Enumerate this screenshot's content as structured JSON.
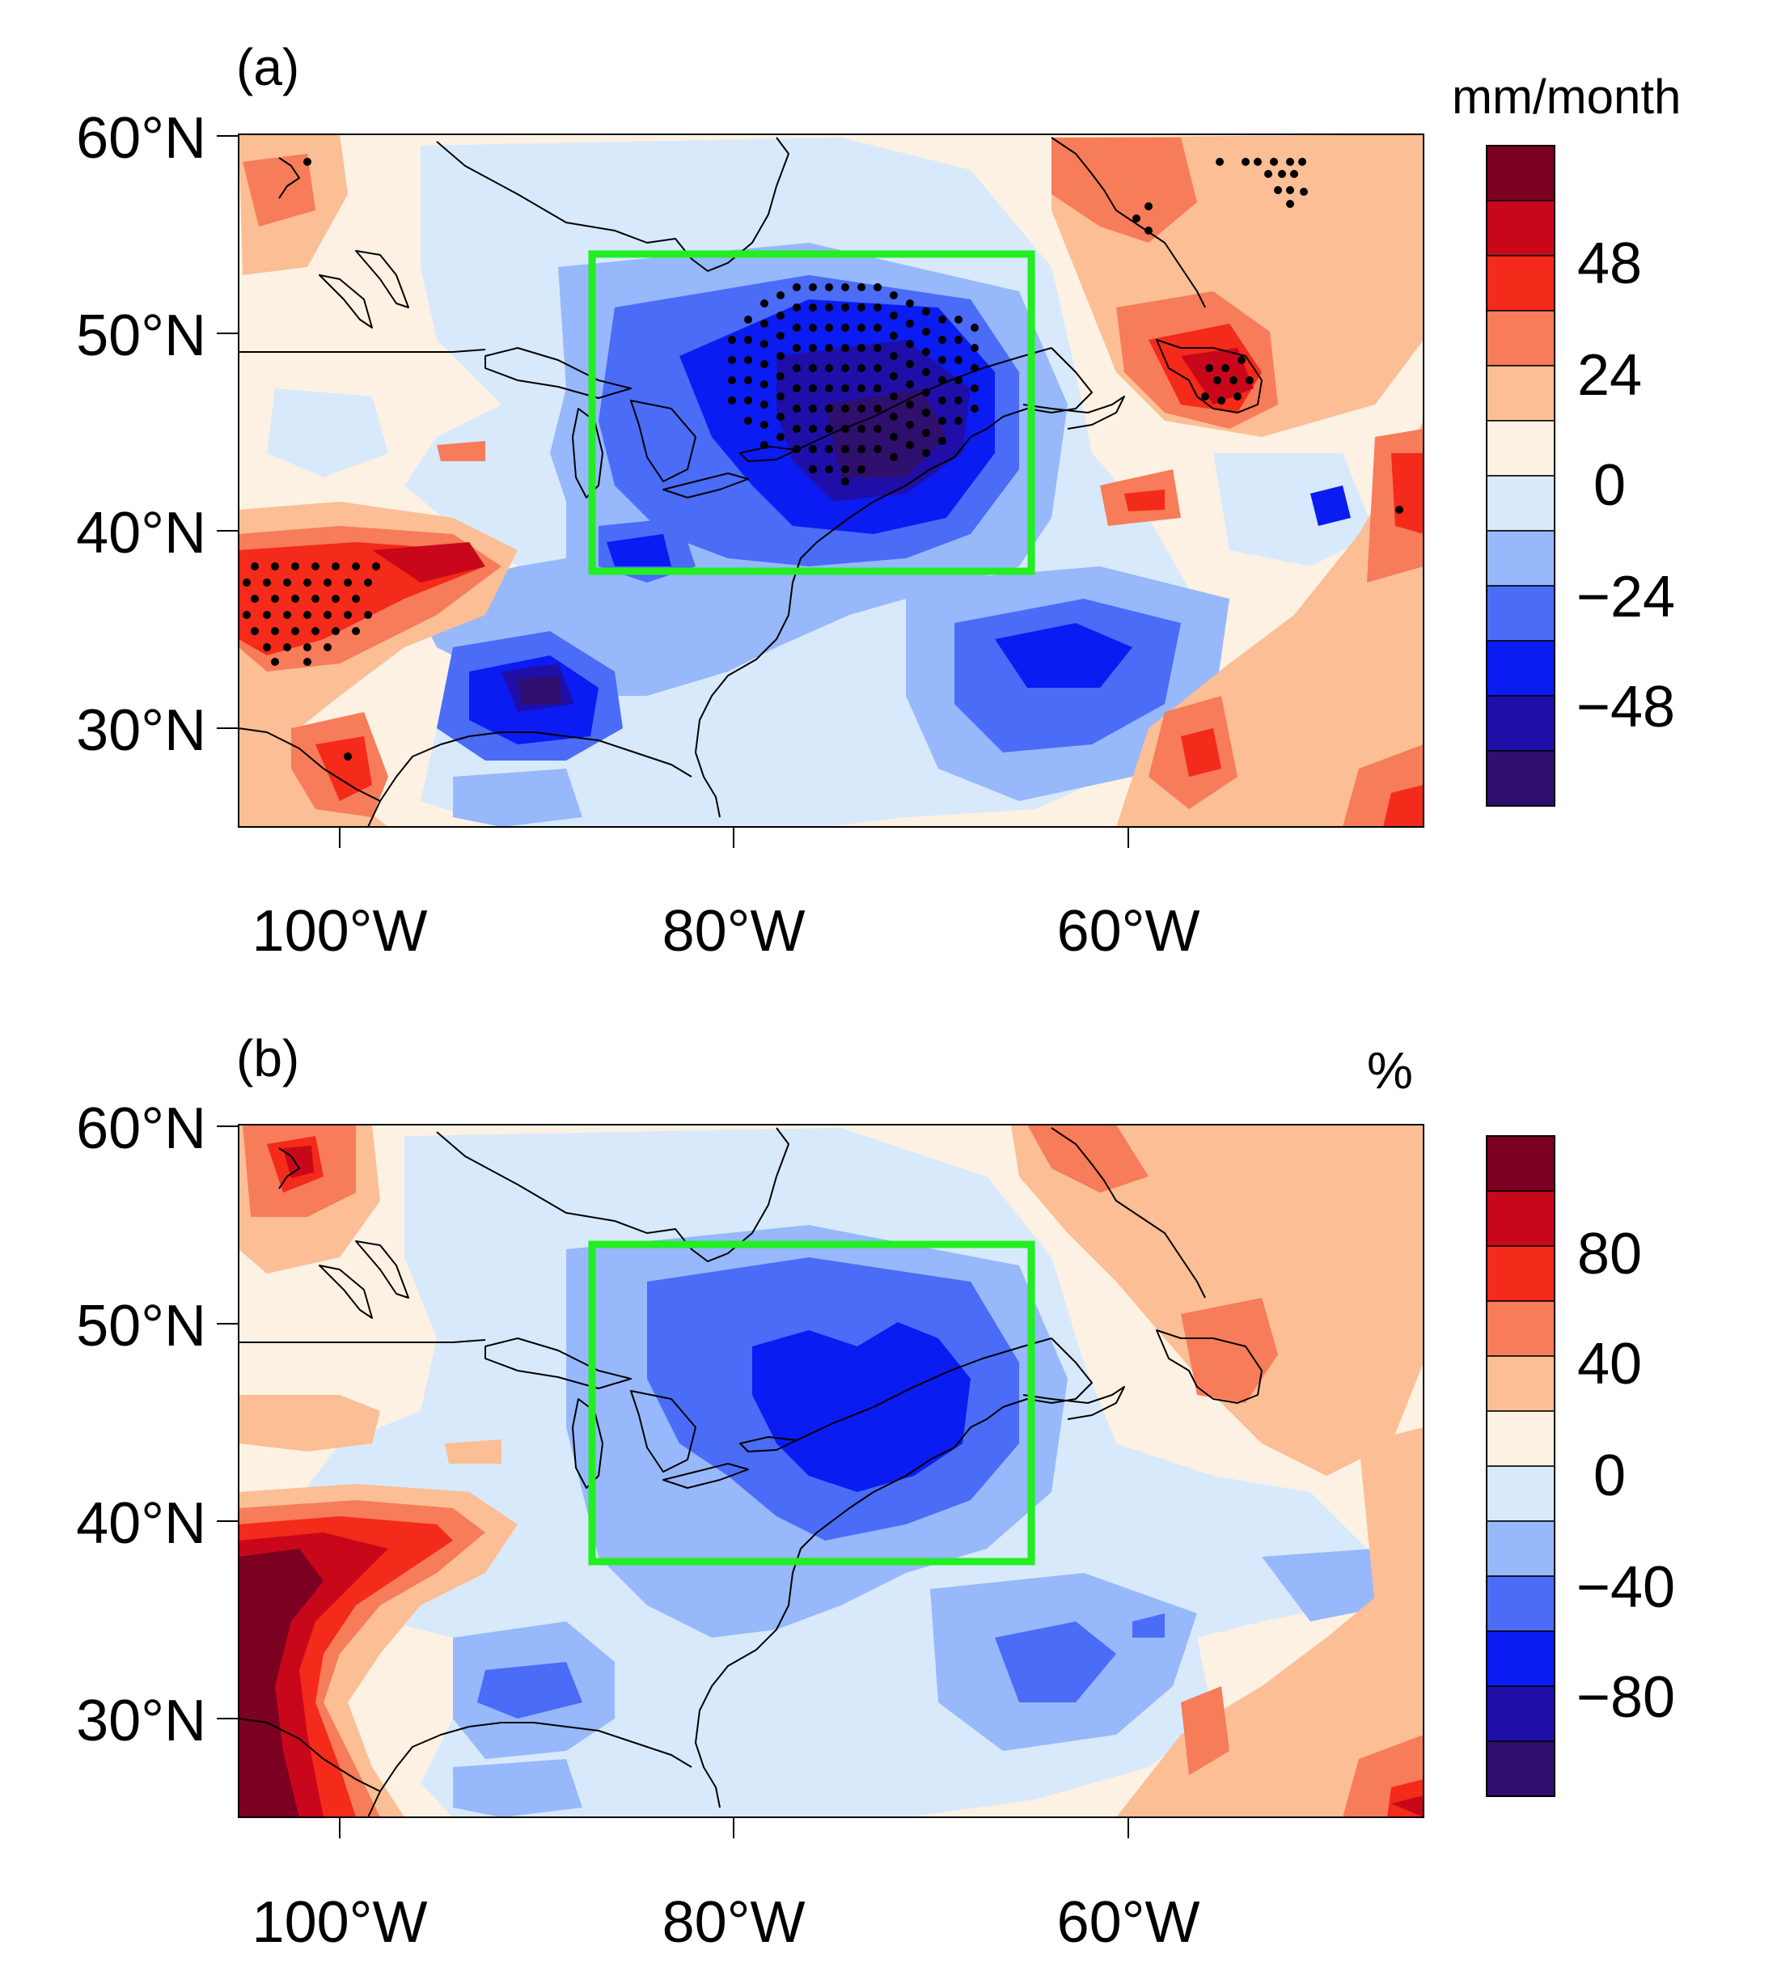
{
  "figure": {
    "panels": [
      {
        "label": "(a)",
        "unit": "mm/month",
        "colorbar": {
          "colors": [
            "#2e0f6e",
            "#1f0fa8",
            "#0a1cf2",
            "#4a6cf7",
            "#97b8fa",
            "#d8e9fb",
            "#fdf1e3",
            "#fbbe95",
            "#f67c5a",
            "#f42a1a",
            "#c8081a",
            "#7c0021"
          ],
          "tick_labels": [
            "48",
            "24",
            "0",
            "−24",
            "−48"
          ]
        },
        "lat_labels": [
          "60°N",
          "50°N",
          "40°N",
          "30°N"
        ],
        "lon_labels": [
          "100°W",
          "80°W",
          "60°W"
        ],
        "has_stippling": true
      },
      {
        "label": "(b)",
        "unit": "%",
        "colorbar": {
          "colors": [
            "#2e0f6e",
            "#1f0fa8",
            "#0a1cf2",
            "#4a6cf7",
            "#97b8fa",
            "#d8e9fb",
            "#fdf1e3",
            "#fbbe95",
            "#f67c5a",
            "#f42a1a",
            "#c8081a",
            "#7c0021"
          ],
          "tick_labels": [
            "80",
            "40",
            "0",
            "−40",
            "−80"
          ]
        },
        "lat_labels": [
          "60°N",
          "50°N",
          "40°N",
          "30°N"
        ],
        "lon_labels": [
          "100°W",
          "80°W",
          "60°W"
        ],
        "has_stippling": false
      }
    ],
    "domain": {
      "lon_min": -105,
      "lon_max": -45,
      "lat_min": 25,
      "lat_max": 60
    },
    "box": {
      "lon_min": -87,
      "lon_max": -65,
      "lat_min": 38,
      "lat_max": 54
    },
    "colors": {
      "box": "#22ee22",
      "background": "#fdf1e3"
    }
  }
}
